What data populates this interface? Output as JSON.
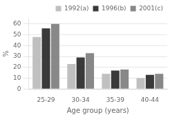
{
  "chart_data": {
    "type": "bar",
    "xlabel": "Age group (years)",
    "ylabel": "%",
    "categories": [
      "25-29",
      "30-34",
      "35-39",
      "40-44"
    ],
    "series": [
      {
        "name": "1992(a)",
        "color": "#c0c0c0",
        "values": [
          48,
          23,
          14,
          10
        ]
      },
      {
        "name": "1996(b)",
        "color": "#3a3a3a",
        "values": [
          56,
          29,
          17,
          13
        ]
      },
      {
        "name": "2001(c)",
        "color": "#888888",
        "values": [
          60,
          33,
          18,
          14
        ]
      }
    ],
    "ylim": [
      0,
      65
    ],
    "yticks": [
      0,
      10,
      20,
      30,
      40,
      50,
      60
    ],
    "grid": true,
    "legend": "upper right"
  }
}
